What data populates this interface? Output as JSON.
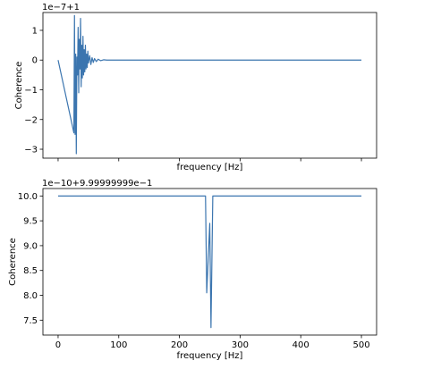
{
  "chart_data": [
    {
      "type": "line",
      "offset_text": "1e−7+1",
      "xlabel": "frequency [Hz]",
      "ylabel": "Coherence",
      "xlim": [
        -25,
        525
      ],
      "ylim": [
        -3.3,
        1.6
      ],
      "yticks": [
        1,
        0,
        -1,
        -2,
        -3
      ],
      "ytick_labels": [
        "1",
        "0",
        "−1",
        "−2",
        "−3"
      ],
      "xticks": [
        0,
        100,
        200,
        300,
        400,
        500
      ],
      "xtick_labels": [],
      "line_color": "#3b75af",
      "series": [
        {
          "x": [
            0,
            26,
            27,
            28,
            29,
            30,
            31,
            32,
            33,
            34,
            35,
            36,
            37,
            38,
            39,
            40,
            41,
            42,
            43,
            44,
            45,
            46,
            47,
            48,
            49,
            50,
            52,
            54,
            56,
            58,
            60,
            63,
            66,
            70,
            75,
            80,
            90,
            100,
            500
          ],
          "y": [
            0,
            -2.45,
            1.5,
            -2.5,
            0.2,
            -3.15,
            0.1,
            -0.5,
            1.1,
            -1.1,
            0.7,
            -0.3,
            1.4,
            -0.9,
            0.5,
            -0.6,
            0.8,
            -0.5,
            0.35,
            -0.4,
            0.5,
            -0.3,
            0.2,
            -0.25,
            0.3,
            -0.1,
            0.15,
            -0.15,
            0.08,
            -0.08,
            0.05,
            -0.05,
            0.03,
            -0.02,
            0.01,
            0.0,
            0.0,
            0.0,
            0.0
          ]
        }
      ]
    },
    {
      "type": "line",
      "offset_text": "1e−10+9.99999999e−1",
      "xlabel": "frequency [Hz]",
      "ylabel": "Coherence",
      "xlim": [
        -25,
        525
      ],
      "ylim": [
        7.2,
        10.15
      ],
      "yticks": [
        10.0,
        9.5,
        9.0,
        8.5,
        8.0,
        7.5
      ],
      "ytick_labels": [
        "10.0",
        "9.5",
        "9.0",
        "8.5",
        "8.0",
        "7.5"
      ],
      "xticks": [
        0,
        100,
        200,
        300,
        400,
        500
      ],
      "xtick_labels": [
        "0",
        "100",
        "200",
        "300",
        "400",
        "500"
      ],
      "line_color": "#3b75af",
      "series": [
        {
          "x": [
            0,
            243,
            245,
            250,
            252,
            255,
            258,
            500
          ],
          "y": [
            10.0,
            10.0,
            8.05,
            9.45,
            7.35,
            10.0,
            10.0,
            10.0
          ]
        }
      ]
    }
  ]
}
